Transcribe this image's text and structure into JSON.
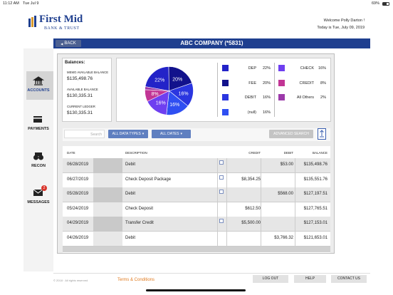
{
  "status_bar": {
    "time": "11:12 AM",
    "date": "Tue Jul 9",
    "battery": "69%"
  },
  "header": {
    "bank_name": "First Mid",
    "bank_subtitle": "BANK & TRUST",
    "welcome": "Welcome Polly Darton !",
    "today": "Today is Tue, July 09, 2019"
  },
  "nav": {
    "back": "BACK",
    "title": "ABC COMPANY (*5831)"
  },
  "sidebar": {
    "items": [
      {
        "label": "ACCOUNTS"
      },
      {
        "label": "PAYMENTS"
      },
      {
        "label": "RECON"
      },
      {
        "label": "MESSAGES",
        "badge": "2"
      }
    ]
  },
  "balances": {
    "title": "Balances:",
    "items": [
      {
        "label": "MEMO AVAILABLE BALANCE",
        "amount": "$135,498.76"
      },
      {
        "label": "AVAILABLE BALANCE",
        "amount": "$130,335.31"
      },
      {
        "label": "CURRENT LEDGER",
        "amount": "$130,335.31"
      }
    ]
  },
  "pie": {
    "slices": [
      {
        "name": "DEP",
        "value": 22,
        "value_label": "22%",
        "color": "#2323c8"
      },
      {
        "name": "FEE",
        "value": 20,
        "value_label": "20%",
        "color": "#12128c"
      },
      {
        "name": "DEBIT",
        "value": 16,
        "value_label": "16%",
        "color": "#2b36e0"
      },
      {
        "name": "(null)",
        "value": 16,
        "value_label": "16%",
        "color": "#2f4ff2"
      },
      {
        "name": "CHECK",
        "value": 16,
        "value_label": "16%",
        "color": "#6e3ff0"
      },
      {
        "name": "CREDIT",
        "value": 8,
        "value_label": "8%",
        "color": "#c23595"
      },
      {
        "name": "All Others",
        "value": 2,
        "value_label": "2%",
        "color": "#9c3aaa"
      }
    ]
  },
  "toolbar": {
    "search_placeholder": "Search",
    "data_types": "ALL DATA TYPES",
    "dates": "ALL DATES",
    "advanced_search": "ADVANCED SEARCH"
  },
  "table": {
    "columns": [
      "DATE",
      "DESCRIPTION",
      "CREDIT",
      "DEBIT",
      "BALANCE"
    ],
    "rows": [
      [
        "06/28/2019",
        "Debit",
        null,
        "$53.00",
        "$135,498.76"
      ],
      [
        "06/27/2019",
        "Check Deposit Package",
        "$8,354.25",
        null,
        "$135,551.76"
      ],
      [
        "05/28/2019",
        "Debit",
        null,
        "$568.00",
        "$127,197.51"
      ],
      [
        "05/24/2019",
        "Check Deposit",
        "$612.50",
        null,
        "$127,765.51"
      ],
      [
        "04/29/2019",
        "Transfer Credit",
        "$5,500.00",
        null,
        "$127,153.01"
      ],
      [
        "04/26/2019",
        "Debit",
        null,
        "$3,766.32",
        "$121,653.01"
      ]
    ]
  },
  "footer": {
    "copyright": "© 2018 · All rights reserved",
    "terms": "Terms & Conditions",
    "buttons": [
      "LOG OUT",
      "HELP",
      "CONTACT US"
    ]
  }
}
